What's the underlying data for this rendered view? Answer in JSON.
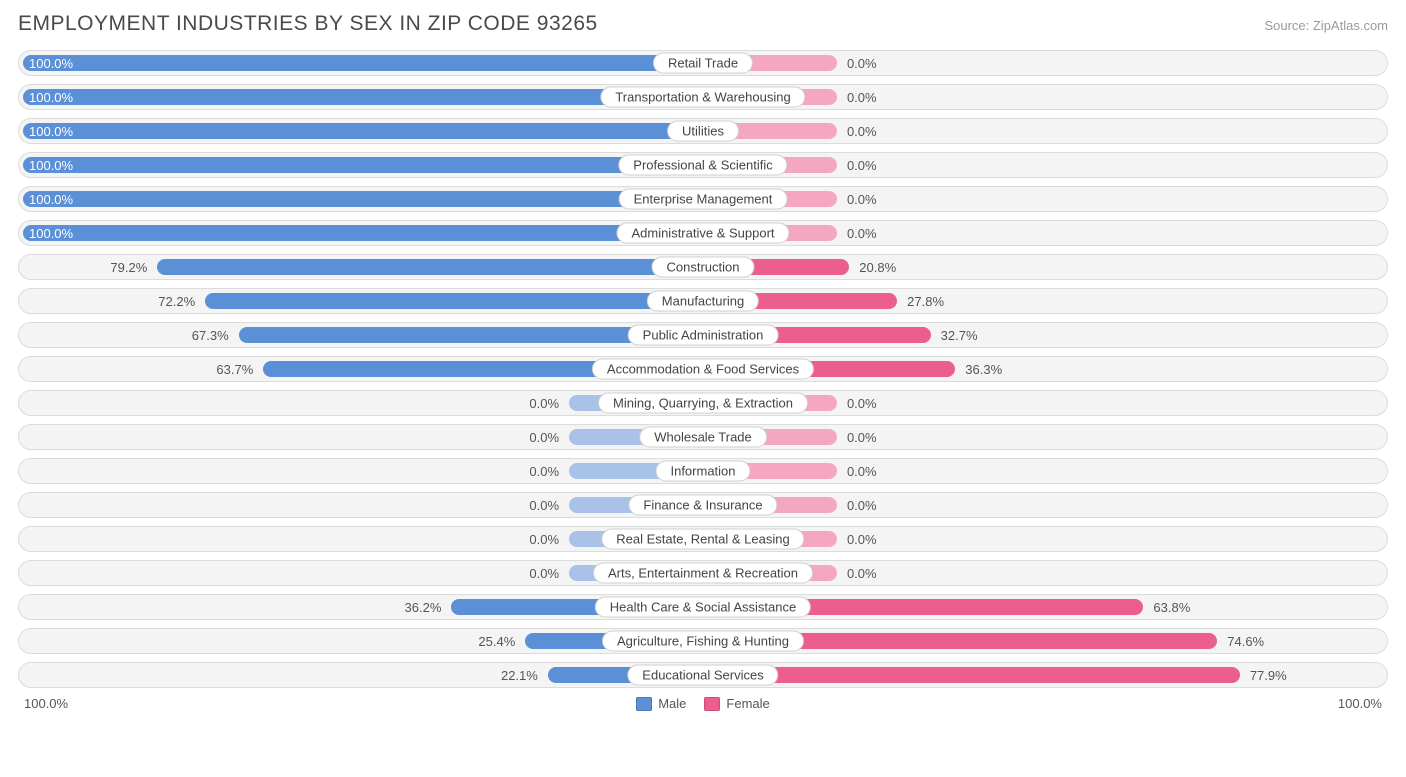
{
  "title": "EMPLOYMENT INDUSTRIES BY SEX IN ZIP CODE 93265",
  "source": "Source: ZipAtlas.com",
  "axis_left": "100.0%",
  "axis_right": "100.0%",
  "legend": {
    "male": "Male",
    "female": "Female"
  },
  "colors": {
    "male_active": "#5b8fd6",
    "male_inactive": "#a9c2e8",
    "female_active": "#ec5e8e",
    "female_inactive": "#f5a6c1",
    "row_bg": "#f4f4f4",
    "row_border": "#dcdcdc",
    "label_bg": "#ffffff",
    "text": "#555555"
  },
  "chart": {
    "type": "diverging-bar",
    "min_bar_pct": 19,
    "rows": [
      {
        "label": "Retail Trade",
        "male": 100.0,
        "female": 0.0,
        "male_txt": "100.0%",
        "female_txt": "0.0%"
      },
      {
        "label": "Transportation & Warehousing",
        "male": 100.0,
        "female": 0.0,
        "male_txt": "100.0%",
        "female_txt": "0.0%"
      },
      {
        "label": "Utilities",
        "male": 100.0,
        "female": 0.0,
        "male_txt": "100.0%",
        "female_txt": "0.0%"
      },
      {
        "label": "Professional & Scientific",
        "male": 100.0,
        "female": 0.0,
        "male_txt": "100.0%",
        "female_txt": "0.0%"
      },
      {
        "label": "Enterprise Management",
        "male": 100.0,
        "female": 0.0,
        "male_txt": "100.0%",
        "female_txt": "0.0%"
      },
      {
        "label": "Administrative & Support",
        "male": 100.0,
        "female": 0.0,
        "male_txt": "100.0%",
        "female_txt": "0.0%"
      },
      {
        "label": "Construction",
        "male": 79.2,
        "female": 20.8,
        "male_txt": "79.2%",
        "female_txt": "20.8%"
      },
      {
        "label": "Manufacturing",
        "male": 72.2,
        "female": 27.8,
        "male_txt": "72.2%",
        "female_txt": "27.8%"
      },
      {
        "label": "Public Administration",
        "male": 67.3,
        "female": 32.7,
        "male_txt": "67.3%",
        "female_txt": "32.7%"
      },
      {
        "label": "Accommodation & Food Services",
        "male": 63.7,
        "female": 36.3,
        "male_txt": "63.7%",
        "female_txt": "36.3%"
      },
      {
        "label": "Mining, Quarrying, & Extraction",
        "male": 0.0,
        "female": 0.0,
        "male_txt": "0.0%",
        "female_txt": "0.0%"
      },
      {
        "label": "Wholesale Trade",
        "male": 0.0,
        "female": 0.0,
        "male_txt": "0.0%",
        "female_txt": "0.0%"
      },
      {
        "label": "Information",
        "male": 0.0,
        "female": 0.0,
        "male_txt": "0.0%",
        "female_txt": "0.0%"
      },
      {
        "label": "Finance & Insurance",
        "male": 0.0,
        "female": 0.0,
        "male_txt": "0.0%",
        "female_txt": "0.0%"
      },
      {
        "label": "Real Estate, Rental & Leasing",
        "male": 0.0,
        "female": 0.0,
        "male_txt": "0.0%",
        "female_txt": "0.0%"
      },
      {
        "label": "Arts, Entertainment & Recreation",
        "male": 0.0,
        "female": 0.0,
        "male_txt": "0.0%",
        "female_txt": "0.0%"
      },
      {
        "label": "Health Care & Social Assistance",
        "male": 36.2,
        "female": 63.8,
        "male_txt": "36.2%",
        "female_txt": "63.8%"
      },
      {
        "label": "Agriculture, Fishing & Hunting",
        "male": 25.4,
        "female": 74.6,
        "male_txt": "25.4%",
        "female_txt": "74.6%"
      },
      {
        "label": "Educational Services",
        "male": 22.1,
        "female": 77.9,
        "male_txt": "22.1%",
        "female_txt": "77.9%"
      }
    ]
  }
}
